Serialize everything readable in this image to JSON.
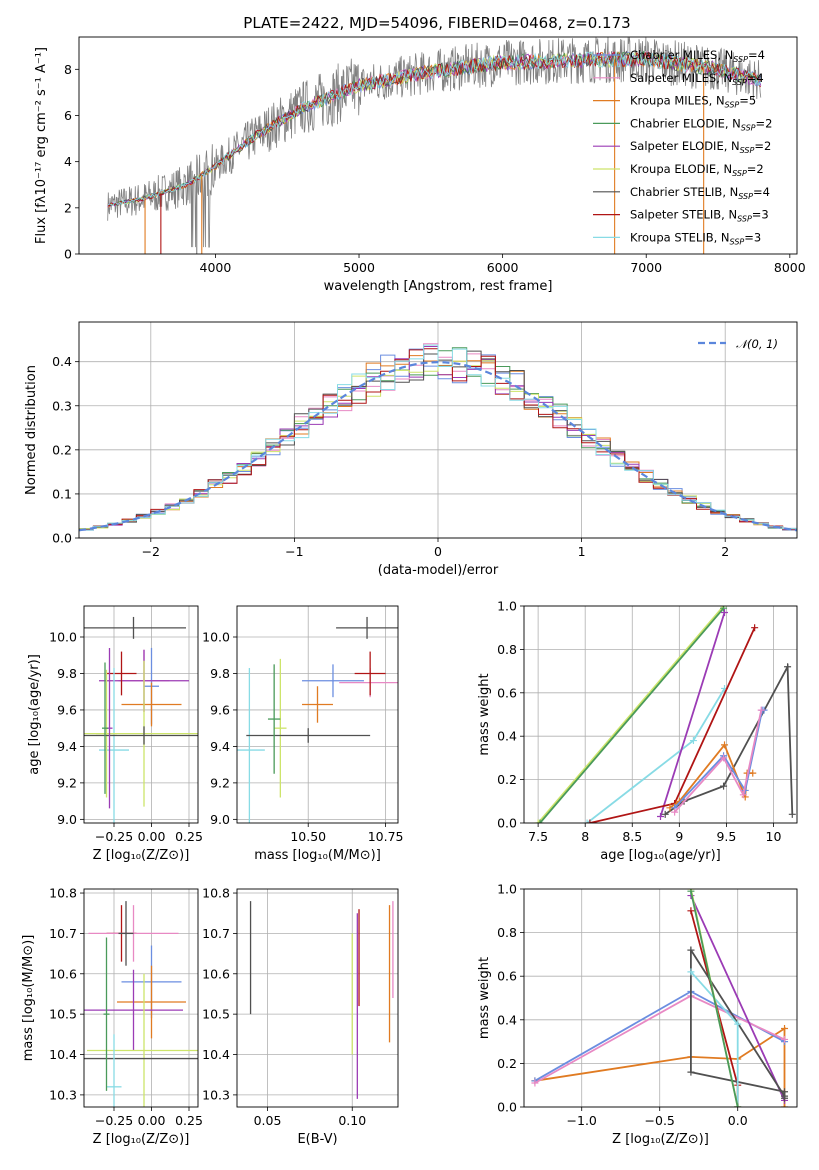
{
  "figure_title": "PLATE=2422, MJD=54096, FIBERID=0468, z=0.173",
  "colors": {
    "spectrum": "#808080",
    "chabrier_miles": "#6b8ee0",
    "salpeter_miles": "#e889c4",
    "kroupa_miles": "#e07b22",
    "chabrier_elodie": "#4a9a5a",
    "salpeter_elodie": "#9b3bb5",
    "kroupa_elodie": "#cde46a",
    "chabrier_stelib": "#505050",
    "salpeter_stelib": "#b01515",
    "kroupa_stelib": "#88dbe5",
    "normal": "#5b86dc"
  },
  "chart_data": [
    {
      "id": "spectrum",
      "type": "line",
      "title": "PLATE=2422, MJD=54096, FIBERID=0468, z=0.173",
      "xlabel": "wavelength [Angstrom, rest frame]",
      "ylabel": "Flux [fλ10⁻¹⁷ erg cm⁻² s⁻¹ A⁻¹]",
      "xlim": [
        3050,
        8050
      ],
      "ylim": [
        0,
        9.4
      ],
      "xticks": [
        4000,
        5000,
        6000,
        7000,
        8000
      ],
      "yticks": [
        0,
        2,
        4,
        6,
        8
      ],
      "grid": false,
      "legend_position": "top-right",
      "continuum_x": [
        3250,
        3500,
        3800,
        4000,
        4300,
        4600,
        5000,
        5500,
        6000,
        6500,
        7000,
        7500,
        7800
      ],
      "continuum_y": [
        2.1,
        2.4,
        3.0,
        3.8,
        5.2,
        6.3,
        7.3,
        7.9,
        8.3,
        8.4,
        8.45,
        8.0,
        7.5
      ],
      "legend": [
        {
          "label": "Chabrier MILES, N",
          "sub": "SSP",
          "suffix": "=4",
          "color": "#6b8ee0"
        },
        {
          "label": "Salpeter MILES, N",
          "sub": "SSP",
          "suffix": "=4",
          "color": "#e889c4"
        },
        {
          "label": "Kroupa MILES, N",
          "sub": "SSP",
          "suffix": "=5",
          "color": "#e07b22"
        },
        {
          "label": "Chabrier ELODIE, N",
          "sub": "SSP",
          "suffix": "=2",
          "color": "#4a9a5a"
        },
        {
          "label": "Salpeter ELODIE, N",
          "sub": "SSP",
          "suffix": "=2",
          "color": "#9b3bb5"
        },
        {
          "label": "Kroupa ELODIE, N",
          "sub": "SSP",
          "suffix": "=2",
          "color": "#cde46a"
        },
        {
          "label": "Chabrier STELIB, N",
          "sub": "SSP",
          "suffix": "=4",
          "color": "#505050"
        },
        {
          "label": "Salpeter STELIB, N",
          "sub": "SSP",
          "suffix": "=3",
          "color": "#b01515"
        },
        {
          "label": "Kroupa STELIB, N",
          "sub": "SSP",
          "suffix": "=3",
          "color": "#88dbe5"
        }
      ]
    },
    {
      "id": "residuals",
      "type": "line",
      "xlabel": "(data-model)/error",
      "ylabel": "Normed distribution",
      "xlim": [
        -2.5,
        2.5
      ],
      "ylim": [
        0,
        0.49
      ],
      "xticks": [
        -2,
        -1,
        0,
        1,
        2
      ],
      "yticks": [
        0.0,
        0.1,
        0.2,
        0.3,
        0.4
      ],
      "grid": true,
      "legend_position": "top-right",
      "legend_label": "𝒩(0, 1)",
      "bin_width": 0.1
    },
    {
      "id": "age_vs_Z",
      "type": "scatter",
      "xlabel": "Z [log₁₀(Z/Z⊙)]",
      "ylabel": "age  [log₁₀(age/yr)]",
      "xlim": [
        -0.45,
        0.31
      ],
      "ylim": [
        8.98,
        10.17
      ],
      "xticks": [
        -0.25,
        0.0,
        0.25
      ],
      "xticklabels": [
        "−0.25",
        "0.00",
        "0.25"
      ],
      "yticks": [
        9.0,
        9.2,
        9.4,
        9.6,
        9.8,
        10.0
      ],
      "grid": true,
      "points": [
        {
          "x": -0.12,
          "xerr": 0.35,
          "y": 10.05,
          "yerr": 0.06,
          "color": "#505050"
        },
        {
          "x": 0.0,
          "xerr": 0.05,
          "y": 9.73,
          "yerr": 0.21,
          "color": "#6b8ee0"
        },
        {
          "x": -0.05,
          "xerr": 0.17,
          "y": 9.76,
          "yerr": 0.17,
          "color": "#e889c4"
        },
        {
          "x": -0.05,
          "xerr": 0.3,
          "y": 9.76,
          "yerr": 0.17,
          "color": "#9b3bb5"
        },
        {
          "x": -0.2,
          "xerr": 0.1,
          "y": 9.8,
          "yerr": 0.12,
          "color": "#b01515"
        },
        {
          "x": 0.0,
          "xerr": 0.2,
          "y": 9.63,
          "yerr": 0.12,
          "color": "#e07b22"
        },
        {
          "x": -0.25,
          "xerr": 0.1,
          "y": 9.38,
          "yerr": 0.45,
          "color": "#88dbe5"
        },
        {
          "x": -0.3,
          "xerr": 0.07,
          "y": 9.47,
          "yerr": 0.35,
          "color": "#cde46a"
        },
        {
          "x": -0.05,
          "xerr": 0.45,
          "y": 9.47,
          "yerr": 0.4,
          "color": "#cde46a"
        },
        {
          "x": -0.05,
          "xerr": 0.43,
          "y": 9.46,
          "yerr": 0.05,
          "color": "#505050"
        },
        {
          "x": -0.28,
          "xerr": 0.02,
          "y": 9.5,
          "yerr": 0.44,
          "color": "#9b3bb5"
        },
        {
          "x": -0.31,
          "xerr": 0.02,
          "y": 9.5,
          "yerr": 0.36,
          "color": "#4a9a5a"
        }
      ]
    },
    {
      "id": "age_vs_mass",
      "type": "scatter",
      "xlabel": "mass [log₁₀(M/M⊙)]",
      "xlim": [
        10.27,
        10.79
      ],
      "ylim": [
        8.98,
        10.17
      ],
      "xticks": [
        10.5,
        10.75
      ],
      "xticklabels": [
        "10.50",
        "10.75"
      ],
      "yticks": [
        9.0,
        9.2,
        9.4,
        9.6,
        9.8,
        10.0
      ],
      "grid": true,
      "points": [
        {
          "x": 10.69,
          "xerr": 0.1,
          "y": 10.05,
          "yerr": 0.06,
          "color": "#505050"
        },
        {
          "x": 10.58,
          "xerr": 0.1,
          "y": 9.76,
          "yerr": 0.09,
          "color": "#6b8ee0"
        },
        {
          "x": 10.7,
          "xerr": 0.1,
          "y": 9.75,
          "yerr": 0.08,
          "color": "#e889c4"
        },
        {
          "x": 10.7,
          "xerr": 0.05,
          "y": 9.8,
          "yerr": 0.12,
          "color": "#b01515"
        },
        {
          "x": 10.53,
          "xerr": 0.05,
          "y": 9.63,
          "yerr": 0.1,
          "color": "#e07b22"
        },
        {
          "x": 10.31,
          "xerr": 0.05,
          "y": 9.38,
          "yerr": 0.45,
          "color": "#88dbe5"
        },
        {
          "x": 10.41,
          "xerr": 0.02,
          "y": 9.5,
          "yerr": 0.38,
          "color": "#cde46a"
        },
        {
          "x": 10.5,
          "xerr": 0.2,
          "y": 9.46,
          "yerr": 0.04,
          "color": "#505050"
        },
        {
          "x": 10.39,
          "xerr": 0.02,
          "y": 9.55,
          "yerr": 0.3,
          "color": "#4a9a5a"
        }
      ]
    },
    {
      "id": "weight_vs_age",
      "type": "line",
      "xlabel": "age  [log₁₀(age/yr)]",
      "ylabel": "mass weight",
      "xlim": [
        7.35,
        10.25
      ],
      "ylim": [
        0,
        1.0
      ],
      "xticks": [
        7.5,
        8.0,
        8.5,
        9.0,
        9.5,
        10.0
      ],
      "yticks": [
        0.0,
        0.2,
        0.4,
        0.6,
        0.8,
        1.0
      ],
      "grid": true,
      "series": [
        {
          "color": "#cde46a",
          "x": [
            7.5,
            9.47
          ],
          "y": [
            0.0,
            1.0
          ]
        },
        {
          "color": "#4a9a5a",
          "x": [
            7.52,
            9.47
          ],
          "y": [
            0.0,
            0.99
          ]
        },
        {
          "color": "#88dbe5",
          "x": [
            8.02,
            9.15,
            9.48
          ],
          "y": [
            0.0,
            0.38,
            0.62
          ]
        },
        {
          "color": "#9b3bb5",
          "x": [
            8.8,
            9.48
          ],
          "y": [
            0.03,
            0.97
          ]
        },
        {
          "color": "#b01515",
          "x": [
            8.05,
            8.95,
            9.8
          ],
          "y": [
            0.0,
            0.09,
            0.9
          ]
        },
        {
          "color": "#505050",
          "x": [
            8.85,
            9.05,
            9.47,
            10.15,
            10.2
          ],
          "y": [
            0.04,
            0.1,
            0.17,
            0.72,
            0.04
          ]
        },
        {
          "color": "#e07b22",
          "x": [
            8.9,
            9.0,
            9.48,
            9.7,
            9.72,
            9.78
          ],
          "y": [
            0.07,
            0.1,
            0.36,
            0.12,
            0.23,
            0.23
          ]
        },
        {
          "color": "#6b8ee0",
          "x": [
            8.95,
            9.47,
            9.7,
            9.88,
            9.9
          ],
          "y": [
            0.07,
            0.31,
            0.15,
            0.52,
            0.52
          ]
        },
        {
          "color": "#e889c4",
          "x": [
            8.95,
            9.47,
            9.68,
            9.87
          ],
          "y": [
            0.05,
            0.3,
            0.13,
            0.52
          ]
        }
      ]
    },
    {
      "id": "mass_vs_Z",
      "type": "scatter",
      "xlabel": "Z [log₁₀(Z/Z⊙)]",
      "ylabel": "mass [log₁₀(M/M⊙)]",
      "xlim": [
        -0.45,
        0.31
      ],
      "ylim": [
        10.27,
        10.81
      ],
      "xticks": [
        -0.25,
        0.0,
        0.25
      ],
      "xticklabels": [
        "−0.25",
        "0.00",
        "0.25"
      ],
      "yticks": [
        10.3,
        10.4,
        10.5,
        10.6,
        10.7,
        10.8
      ],
      "grid": true,
      "points": [
        {
          "x": -0.2,
          "xerr": 0.1,
          "y": 10.7,
          "yerr": 0.07,
          "color": "#b01515"
        },
        {
          "x": -0.12,
          "xerr": 0.3,
          "y": 10.7,
          "yerr": 0.07,
          "color": "#e889c4"
        },
        {
          "x": -0.17,
          "xerr": 0.05,
          "y": 10.7,
          "yerr": 0.08,
          "color": "#505050"
        },
        {
          "x": 0.0,
          "xerr": 0.2,
          "y": 10.58,
          "yerr": 0.09,
          "color": "#6b8ee0"
        },
        {
          "x": 0.0,
          "xerr": 0.23,
          "y": 10.53,
          "yerr": 0.09,
          "color": "#e07b22"
        },
        {
          "x": -0.12,
          "xerr": 0.33,
          "y": 10.51,
          "yerr": 0.1,
          "color": "#9b3bb5"
        },
        {
          "x": -0.05,
          "xerr": 0.38,
          "y": 10.41,
          "yerr": 0.19,
          "color": "#cde46a"
        },
        {
          "x": -0.06,
          "xerr": 0.4,
          "y": 10.39,
          "yerr": 0.0,
          "color": "#505050"
        },
        {
          "x": -0.25,
          "xerr": 0.05,
          "y": 10.32,
          "yerr": 0.13,
          "color": "#88dbe5"
        },
        {
          "x": -0.3,
          "xerr": 0.02,
          "y": 10.5,
          "yerr": 0.19,
          "color": "#4a9a5a"
        }
      ]
    },
    {
      "id": "mass_vs_ebv",
      "type": "scatter",
      "xlabel": "E(B-V)",
      "xlim": [
        0.032,
        0.127
      ],
      "ylim": [
        10.27,
        10.81
      ],
      "xticks": [
        0.05,
        0.1
      ],
      "xticklabels": [
        "0.05",
        "0.10"
      ],
      "yticks": [
        10.3,
        10.4,
        10.5,
        10.6,
        10.7,
        10.8
      ],
      "grid": true,
      "points": [
        {
          "x": 0.04,
          "y": 10.64,
          "yerr": 0.14,
          "color": "#505050"
        },
        {
          "x": 0.1,
          "y": 10.55,
          "yerr": 0.15,
          "color": "#cde46a"
        },
        {
          "x": 0.103,
          "y": 10.52,
          "yerr": 0.23,
          "color": "#9b3bb5"
        },
        {
          "x": 0.104,
          "y": 10.64,
          "yerr": 0.12,
          "color": "#b01515"
        },
        {
          "x": 0.122,
          "y": 10.6,
          "yerr": 0.17,
          "color": "#e07b22"
        },
        {
          "x": 0.124,
          "y": 10.66,
          "yerr": 0.12,
          "color": "#e889c4"
        }
      ]
    },
    {
      "id": "weight_vs_Z",
      "type": "line",
      "xlabel": "Z [log₁₀(Z/Z⊙)]",
      "ylabel": "mass weight",
      "xlim": [
        -1.37,
        0.38
      ],
      "ylim": [
        0,
        1.0
      ],
      "xticks": [
        -1.0,
        -0.5,
        0.0
      ],
      "xticklabels": [
        "−1.0",
        "−0.5",
        "0.0"
      ],
      "yticks": [
        0.0,
        0.2,
        0.4,
        0.6,
        0.8,
        1.0
      ],
      "grid": true,
      "series": [
        {
          "color": "#e07b22",
          "x": [
            -1.3,
            -0.3,
            0.0,
            0.3,
            0.3
          ],
          "y": [
            0.12,
            0.23,
            0.22,
            0.36,
            0.0
          ]
        },
        {
          "color": "#6b8ee0",
          "x": [
            -1.3,
            -0.3,
            0.3
          ],
          "y": [
            0.12,
            0.53,
            0.3
          ]
        },
        {
          "color": "#e889c4",
          "x": [
            -1.3,
            -0.3,
            0.3
          ],
          "y": [
            0.11,
            0.51,
            0.31
          ]
        },
        {
          "color": "#b01515",
          "x": [
            -0.3,
            0.0,
            0.0
          ],
          "y": [
            0.9,
            0.1,
            0.0
          ]
        },
        {
          "color": "#9b3bb5",
          "x": [
            -0.3,
            0.3
          ],
          "y": [
            0.97,
            0.03
          ]
        },
        {
          "color": "#505050",
          "x": [
            -0.3,
            -0.3,
            0.3,
            0.3
          ],
          "y": [
            0.72,
            0.16,
            0.07,
            0.04
          ]
        },
        {
          "color": "#505050",
          "x": [
            -0.3,
            0.3
          ],
          "y": [
            0.72,
            0.05
          ]
        },
        {
          "color": "#88dbe5",
          "x": [
            -0.3,
            0.0,
            0.0
          ],
          "y": [
            0.62,
            0.38,
            0.0
          ]
        },
        {
          "color": "#cde46a",
          "x": [
            -0.3,
            0.0
          ],
          "y": [
            1.0,
            0.0
          ]
        },
        {
          "color": "#4a9a5a",
          "x": [
            -0.3,
            0.0
          ],
          "y": [
            0.99,
            0.0
          ]
        }
      ]
    }
  ]
}
